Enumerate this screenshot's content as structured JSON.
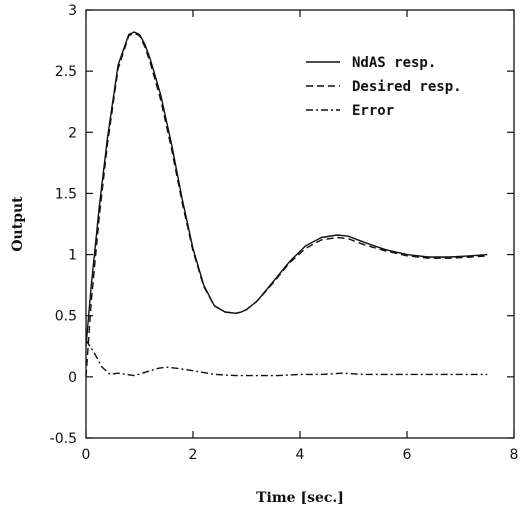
{
  "chart_data": {
    "type": "line",
    "title": "",
    "xlabel": "Time [sec.]",
    "ylabel": "Output",
    "xlim": [
      0,
      8
    ],
    "ylim": [
      -0.5,
      3
    ],
    "xticks": [
      0,
      2,
      4,
      6,
      8
    ],
    "xtick_labels": [
      "0",
      "2",
      "4",
      "6",
      "8"
    ],
    "yticks": [
      -0.5,
      0,
      0.5,
      1,
      1.5,
      2,
      2.5,
      3
    ],
    "ytick_labels": [
      "-0.5",
      "0",
      "0.5",
      "1",
      "1.5",
      "2",
      "2.5",
      "3"
    ],
    "grid": false,
    "legend_position": "top-right",
    "series": [
      {
        "name": "NdAS resp.",
        "style": "solid",
        "color": "#111111",
        "x": [
          0,
          0.1,
          0.25,
          0.4,
          0.6,
          0.8,
          0.9,
          1.0,
          1.1,
          1.2,
          1.4,
          1.6,
          1.8,
          2.0,
          2.2,
          2.4,
          2.6,
          2.8,
          2.9,
          3.0,
          3.2,
          3.5,
          3.8,
          4.1,
          4.4,
          4.7,
          4.9,
          5.2,
          5.6,
          6.0,
          6.4,
          6.8,
          7.2,
          7.5
        ],
        "y": [
          0.25,
          0.75,
          1.4,
          1.95,
          2.55,
          2.8,
          2.82,
          2.8,
          2.72,
          2.6,
          2.3,
          1.9,
          1.45,
          1.05,
          0.75,
          0.58,
          0.53,
          0.52,
          0.53,
          0.55,
          0.62,
          0.78,
          0.94,
          1.07,
          1.14,
          1.16,
          1.15,
          1.1,
          1.04,
          1.0,
          0.98,
          0.98,
          0.99,
          1.0
        ]
      },
      {
        "name": "Desired resp.",
        "style": "dashed",
        "color": "#111111",
        "x": [
          0,
          0.1,
          0.25,
          0.4,
          0.6,
          0.8,
          0.9,
          1.0,
          1.1,
          1.2,
          1.4,
          1.6,
          1.8,
          2.0,
          2.2,
          2.4,
          2.6,
          2.8,
          2.9,
          3.0,
          3.2,
          3.5,
          3.8,
          4.1,
          4.4,
          4.7,
          4.9,
          5.2,
          5.6,
          6.0,
          6.4,
          6.8,
          7.2,
          7.5
        ],
        "y": [
          0.0,
          0.62,
          1.32,
          1.9,
          2.52,
          2.79,
          2.81,
          2.79,
          2.7,
          2.57,
          2.26,
          1.86,
          1.42,
          1.03,
          0.74,
          0.58,
          0.53,
          0.52,
          0.53,
          0.55,
          0.62,
          0.77,
          0.93,
          1.05,
          1.12,
          1.14,
          1.13,
          1.08,
          1.03,
          0.99,
          0.97,
          0.97,
          0.98,
          0.99
        ]
      },
      {
        "name": "Error",
        "style": "dashdot",
        "color": "#111111",
        "x": [
          0,
          0.15,
          0.3,
          0.45,
          0.6,
          0.75,
          0.9,
          1.05,
          1.2,
          1.35,
          1.5,
          1.7,
          2.0,
          2.4,
          2.8,
          3.2,
          3.6,
          4.0,
          4.4,
          4.8,
          5.2,
          5.6,
          6.0,
          6.4,
          6.8,
          7.2,
          7.5
        ],
        "y": [
          0.3,
          0.2,
          0.08,
          0.02,
          0.03,
          0.02,
          0.01,
          0.03,
          0.05,
          0.07,
          0.08,
          0.07,
          0.05,
          0.02,
          0.01,
          0.01,
          0.01,
          0.02,
          0.02,
          0.03,
          0.02,
          0.02,
          0.02,
          0.02,
          0.02,
          0.02,
          0.02
        ]
      }
    ]
  }
}
